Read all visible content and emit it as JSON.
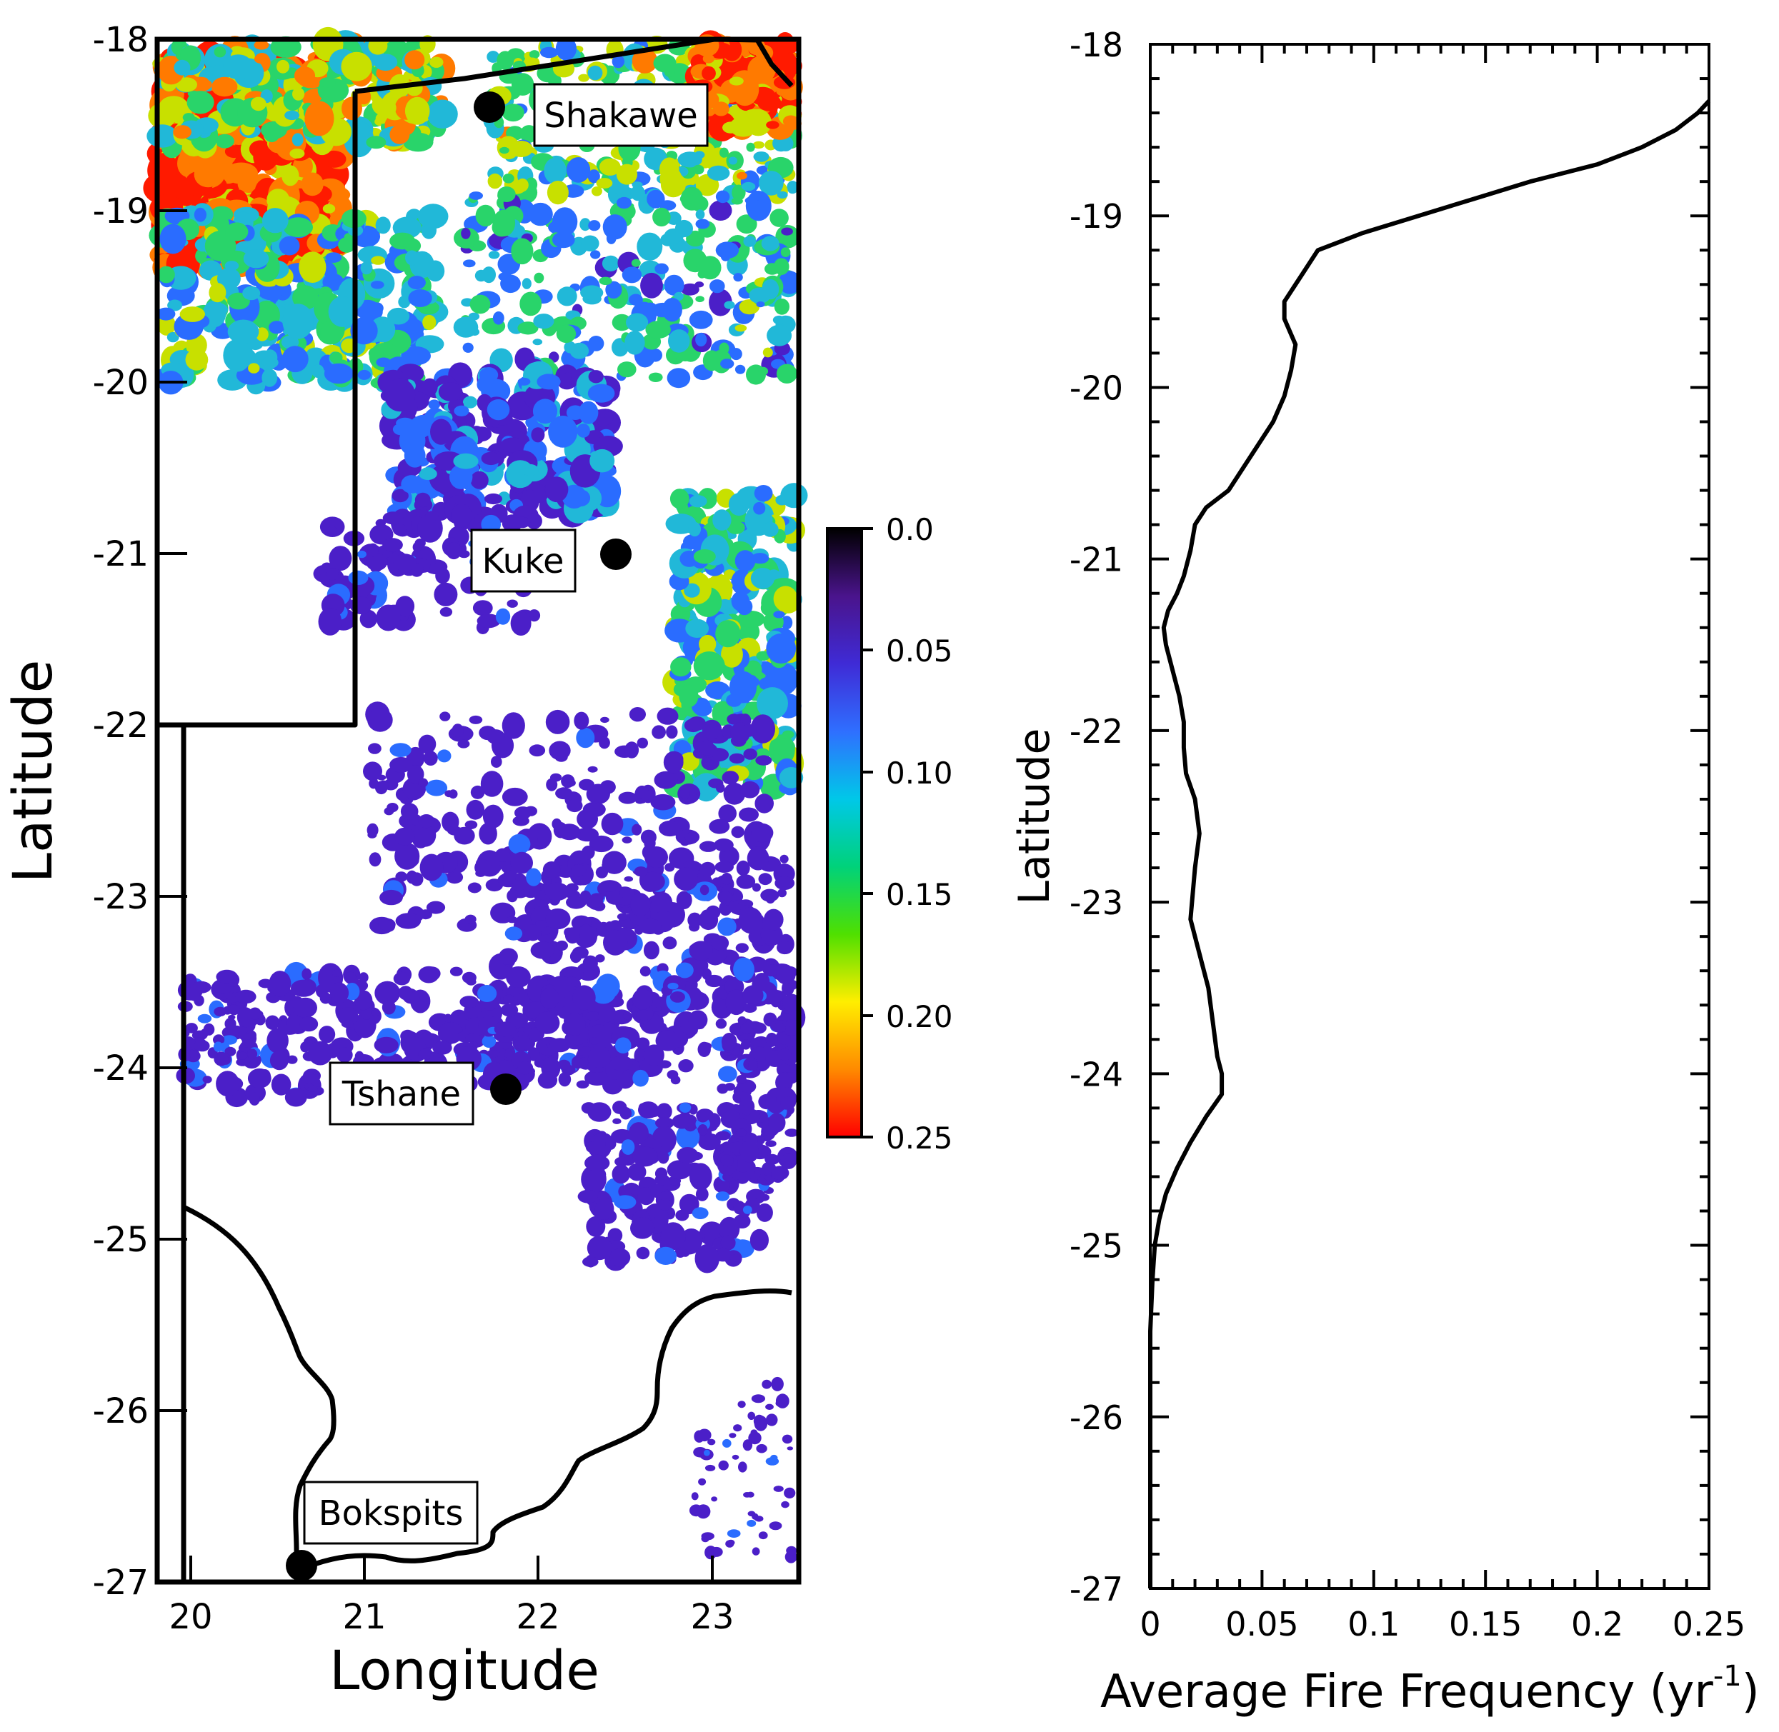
{
  "left_panel": {
    "xlabel": "Longitude",
    "ylabel": "Latitude",
    "x_ticks": [
      "20",
      "21",
      "22",
      "23"
    ],
    "y_ticks": [
      "-18",
      "-19",
      "-20",
      "-21",
      "-22",
      "-23",
      "-24",
      "-25",
      "-26",
      "-27"
    ],
    "towns": [
      {
        "name": "Shakawe",
        "lon": 21.7,
        "lat": -18.4
      },
      {
        "name": "Kuke",
        "lon": 22.45,
        "lat": -21.0
      },
      {
        "name": "Tshane",
        "lon": 21.8,
        "lat": -24.1
      },
      {
        "name": "Bokspits",
        "lon": 20.62,
        "lat": -26.88
      }
    ],
    "colorbar": {
      "ticks": [
        "0.0",
        "0.05",
        "0.10",
        "0.15",
        "0.20",
        "0.25"
      ],
      "colors": [
        "#000000",
        "#4a148c",
        "#3f2bd6",
        "#2f6fff",
        "#00c8e8",
        "#00d27a",
        "#4fe000",
        "#ffee00",
        "#ff8a00",
        "#ff0000"
      ]
    }
  },
  "chart_data": {
    "type": "line",
    "title": "",
    "xlabel": "Average Fire Frequency (yr",
    "xlabel_sup": "-1",
    "xlabel_close": ")",
    "ylabel": "Latitude",
    "xlim": [
      0,
      0.25
    ],
    "ylim": [
      -27,
      -18
    ],
    "x_ticks": [
      "0",
      "0.05",
      "0.1",
      "0.15",
      "0.2",
      "0.25"
    ],
    "y_ticks": [
      "-18",
      "-19",
      "-20",
      "-21",
      "-22",
      "-23",
      "-24",
      "-25",
      "-26",
      "-27"
    ],
    "series": [
      {
        "x": [
          0.25,
          0.245,
          0.235,
          0.22,
          0.2,
          0.17,
          0.145,
          0.12,
          0.095,
          0.085,
          0.075,
          0.07,
          0.065,
          0.06,
          0.06,
          0.065,
          0.063,
          0.06,
          0.055,
          0.05,
          0.045,
          0.04,
          0.035,
          0.025,
          0.02,
          0.018,
          0.015,
          0.012,
          0.008,
          0.006,
          0.007,
          0.01,
          0.013,
          0.015,
          0.015,
          0.016,
          0.02,
          0.022,
          0.02,
          0.018,
          0.022,
          0.026,
          0.028,
          0.03,
          0.032,
          0.032,
          0.025,
          0.018,
          0.012,
          0.007,
          0.004,
          0.002,
          0.001,
          0.0,
          0.0,
          0.0,
          0.0,
          0.0
        ],
        "y": [
          -18.33,
          -18.4,
          -18.5,
          -18.6,
          -18.7,
          -18.8,
          -18.9,
          -19.0,
          -19.1,
          -19.15,
          -19.2,
          -19.3,
          -19.4,
          -19.5,
          -19.6,
          -19.75,
          -19.9,
          -20.05,
          -20.2,
          -20.3,
          -20.4,
          -20.5,
          -20.6,
          -20.7,
          -20.8,
          -20.95,
          -21.1,
          -21.2,
          -21.3,
          -21.4,
          -21.5,
          -21.65,
          -21.8,
          -21.95,
          -22.1,
          -22.25,
          -22.4,
          -22.6,
          -22.8,
          -23.1,
          -23.3,
          -23.5,
          -23.7,
          -23.9,
          -24.0,
          -24.12,
          -24.25,
          -24.4,
          -24.55,
          -24.7,
          -24.85,
          -25.0,
          -25.2,
          -25.5,
          -25.9,
          -26.3,
          -26.7,
          -27.0
        ]
      }
    ],
    "grid": false,
    "legend": "none"
  }
}
